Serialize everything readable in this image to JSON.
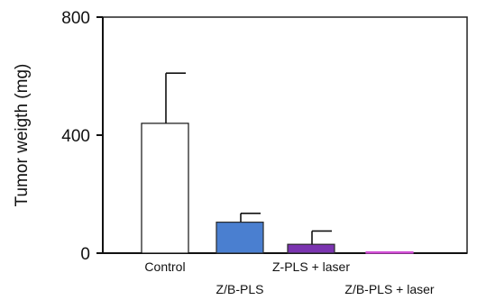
{
  "chart_data": {
    "type": "bar",
    "ylabel": "Tumor weigth (mg)",
    "xlabel": "",
    "ylim": [
      0,
      800
    ],
    "yticks": [
      0,
      400,
      800
    ],
    "categories": [
      "Control",
      "Z/B-PLS",
      "Z-PLS + laser",
      "Z/B-PLS + laser"
    ],
    "values": [
      440,
      105,
      30,
      2
    ],
    "errors": [
      170,
      30,
      45,
      0
    ],
    "colors": [
      "#ffffff",
      "#4a7fd0",
      "#7b34b0",
      "#d24fd6"
    ],
    "grid": false,
    "legend": "none"
  }
}
